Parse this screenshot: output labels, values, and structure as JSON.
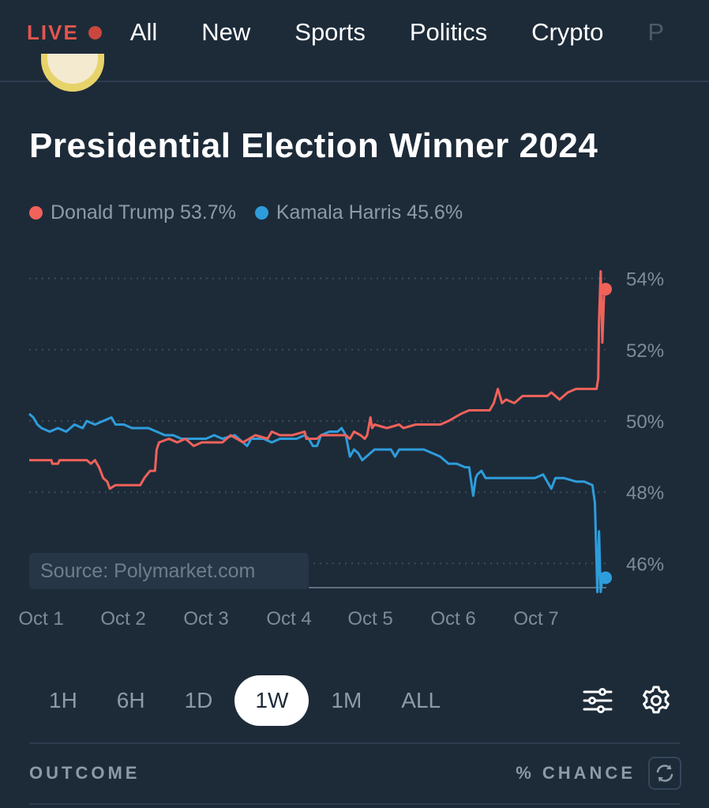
{
  "nav": {
    "live_label": "LIVE",
    "items": [
      "All",
      "New",
      "Sports",
      "Politics",
      "Crypto",
      "P"
    ]
  },
  "market": {
    "title": "Presidential Election Winner 2024",
    "source": "Source: Polymarket.com"
  },
  "legend": [
    {
      "label": "Donald Trump 53.7%",
      "color": "#f0625a"
    },
    {
      "label": "Kamala Harris 45.6%",
      "color": "#2e9ddb"
    }
  ],
  "chart_data": {
    "type": "line",
    "x_tick_labels": [
      "Oct 1",
      "Oct 2",
      "Oct 3",
      "Oct 4",
      "Oct 5",
      "Oct 6",
      "Oct 7"
    ],
    "y_tick_labels": [
      "54%",
      "52%",
      "50%",
      "48%",
      "46%"
    ],
    "y_ticks": [
      54,
      52,
      50,
      48,
      46
    ],
    "ylim": [
      45.3,
      54.5
    ],
    "xlim": [
      0.85,
      7.85
    ],
    "grid": "horizontal dotted",
    "series": [
      {
        "name": "Donald Trump",
        "color": "#f0625a",
        "points": [
          [
            0.85,
            48.9
          ],
          [
            1.12,
            48.9
          ],
          [
            1.13,
            48.8
          ],
          [
            1.2,
            48.8
          ],
          [
            1.22,
            48.9
          ],
          [
            1.55,
            48.9
          ],
          [
            1.6,
            48.8
          ],
          [
            1.65,
            48.9
          ],
          [
            1.7,
            48.7
          ],
          [
            1.75,
            48.4
          ],
          [
            1.8,
            48.3
          ],
          [
            1.83,
            48.1
          ],
          [
            1.9,
            48.2
          ],
          [
            2.0,
            48.2
          ],
          [
            2.2,
            48.2
          ],
          [
            2.25,
            48.4
          ],
          [
            2.32,
            48.6
          ],
          [
            2.38,
            48.6
          ],
          [
            2.4,
            49.2
          ],
          [
            2.43,
            49.4
          ],
          [
            2.55,
            49.5
          ],
          [
            2.65,
            49.4
          ],
          [
            2.75,
            49.5
          ],
          [
            2.85,
            49.3
          ],
          [
            2.95,
            49.4
          ],
          [
            3.1,
            49.4
          ],
          [
            3.2,
            49.4
          ],
          [
            3.3,
            49.6
          ],
          [
            3.45,
            49.4
          ],
          [
            3.6,
            49.6
          ],
          [
            3.75,
            49.5
          ],
          [
            3.8,
            49.7
          ],
          [
            3.9,
            49.6
          ],
          [
            4.05,
            49.6
          ],
          [
            4.2,
            49.7
          ],
          [
            4.22,
            49.5
          ],
          [
            4.35,
            49.5
          ],
          [
            4.4,
            49.6
          ],
          [
            4.55,
            49.6
          ],
          [
            4.7,
            49.6
          ],
          [
            4.75,
            49.5
          ],
          [
            4.8,
            49.7
          ],
          [
            4.88,
            49.6
          ],
          [
            4.93,
            49.5
          ],
          [
            4.96,
            49.6
          ],
          [
            5.0,
            50.1
          ],
          [
            5.02,
            49.8
          ],
          [
            5.05,
            49.9
          ],
          [
            5.2,
            49.8
          ],
          [
            5.35,
            49.9
          ],
          [
            5.4,
            49.8
          ],
          [
            5.55,
            49.9
          ],
          [
            5.7,
            49.9
          ],
          [
            5.85,
            49.9
          ],
          [
            5.95,
            50.0
          ],
          [
            6.1,
            50.2
          ],
          [
            6.2,
            50.3
          ],
          [
            6.3,
            50.3
          ],
          [
            6.45,
            50.3
          ],
          [
            6.5,
            50.5
          ],
          [
            6.55,
            50.9
          ],
          [
            6.6,
            50.5
          ],
          [
            6.65,
            50.6
          ],
          [
            6.75,
            50.5
          ],
          [
            6.85,
            50.7
          ],
          [
            6.95,
            50.7
          ],
          [
            7.05,
            50.7
          ],
          [
            7.15,
            50.7
          ],
          [
            7.2,
            50.8
          ],
          [
            7.3,
            50.6
          ],
          [
            7.4,
            50.8
          ],
          [
            7.5,
            50.9
          ],
          [
            7.62,
            50.9
          ],
          [
            7.75,
            50.9
          ],
          [
            7.77,
            51.2
          ],
          [
            7.78,
            52.8
          ],
          [
            7.8,
            54.2
          ],
          [
            7.82,
            52.2
          ],
          [
            7.84,
            53.5
          ],
          [
            7.85,
            53.7
          ]
        ]
      },
      {
        "name": "Kamala Harris",
        "color": "#2e9ddb",
        "points": [
          [
            0.85,
            50.2
          ],
          [
            0.9,
            50.1
          ],
          [
            0.95,
            49.9
          ],
          [
            1.0,
            49.8
          ],
          [
            1.1,
            49.7
          ],
          [
            1.2,
            49.8
          ],
          [
            1.3,
            49.7
          ],
          [
            1.4,
            49.9
          ],
          [
            1.5,
            49.8
          ],
          [
            1.55,
            50.0
          ],
          [
            1.65,
            49.9
          ],
          [
            1.75,
            50.0
          ],
          [
            1.85,
            50.1
          ],
          [
            1.9,
            49.9
          ],
          [
            2.0,
            49.9
          ],
          [
            2.1,
            49.8
          ],
          [
            2.2,
            49.8
          ],
          [
            2.3,
            49.8
          ],
          [
            2.4,
            49.7
          ],
          [
            2.5,
            49.6
          ],
          [
            2.6,
            49.6
          ],
          [
            2.7,
            49.5
          ],
          [
            2.8,
            49.5
          ],
          [
            2.9,
            49.5
          ],
          [
            3.0,
            49.5
          ],
          [
            3.1,
            49.6
          ],
          [
            3.2,
            49.5
          ],
          [
            3.35,
            49.6
          ],
          [
            3.45,
            49.4
          ],
          [
            3.5,
            49.3
          ],
          [
            3.55,
            49.5
          ],
          [
            3.7,
            49.5
          ],
          [
            3.8,
            49.4
          ],
          [
            3.9,
            49.5
          ],
          [
            4.0,
            49.5
          ],
          [
            4.1,
            49.5
          ],
          [
            4.2,
            49.6
          ],
          [
            4.25,
            49.5
          ],
          [
            4.3,
            49.3
          ],
          [
            4.35,
            49.3
          ],
          [
            4.4,
            49.6
          ],
          [
            4.5,
            49.7
          ],
          [
            4.6,
            49.7
          ],
          [
            4.65,
            49.8
          ],
          [
            4.7,
            49.6
          ],
          [
            4.75,
            49.0
          ],
          [
            4.8,
            49.2
          ],
          [
            4.85,
            49.1
          ],
          [
            4.9,
            48.9
          ],
          [
            4.95,
            49.0
          ],
          [
            5.05,
            49.2
          ],
          [
            5.15,
            49.2
          ],
          [
            5.25,
            49.2
          ],
          [
            5.3,
            49.0
          ],
          [
            5.35,
            49.2
          ],
          [
            5.45,
            49.2
          ],
          [
            5.55,
            49.2
          ],
          [
            5.65,
            49.2
          ],
          [
            5.75,
            49.1
          ],
          [
            5.85,
            49.0
          ],
          [
            5.95,
            48.8
          ],
          [
            6.05,
            48.8
          ],
          [
            6.15,
            48.7
          ],
          [
            6.2,
            48.7
          ],
          [
            6.25,
            47.9
          ],
          [
            6.28,
            48.4
          ],
          [
            6.3,
            48.5
          ],
          [
            6.35,
            48.6
          ],
          [
            6.4,
            48.4
          ],
          [
            6.5,
            48.4
          ],
          [
            6.6,
            48.4
          ],
          [
            6.7,
            48.4
          ],
          [
            6.8,
            48.4
          ],
          [
            6.9,
            48.4
          ],
          [
            7.0,
            48.4
          ],
          [
            7.1,
            48.5
          ],
          [
            7.2,
            48.1
          ],
          [
            7.25,
            48.4
          ],
          [
            7.35,
            48.4
          ],
          [
            7.5,
            48.3
          ],
          [
            7.6,
            48.3
          ],
          [
            7.7,
            48.2
          ],
          [
            7.73,
            47.7
          ],
          [
            7.76,
            45.2
          ],
          [
            7.78,
            46.9
          ],
          [
            7.8,
            45.2
          ],
          [
            7.82,
            45.6
          ],
          [
            7.85,
            45.6
          ]
        ]
      }
    ]
  },
  "time_ranges": [
    "1H",
    "6H",
    "1D",
    "1W",
    "1M",
    "ALL"
  ],
  "active_range": "1W",
  "table": {
    "outcome_header": "OUTCOME",
    "chance_header": "% CHANCE"
  }
}
